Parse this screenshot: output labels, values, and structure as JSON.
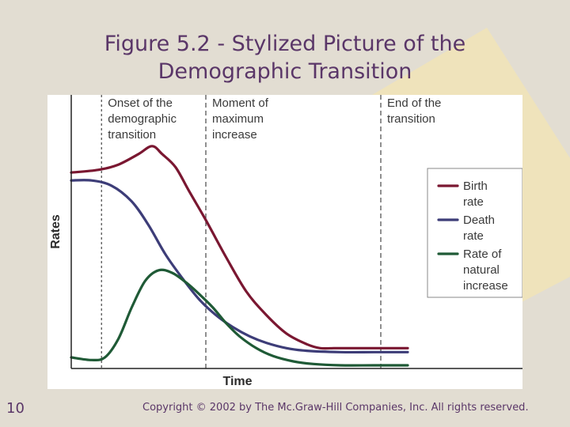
{
  "slide": {
    "title_line1": "Figure 5.2 - Stylized Picture of the",
    "title_line2": "Demographic Transition",
    "page_number": "10",
    "copyright": "Copyright © 2002 by The Mc.Graw-Hill Companies, Inc.  All rights reserved.",
    "colors": {
      "background": "#e2ddd2",
      "accent_wedge": "#efe3bb",
      "title_text": "#5a3668"
    }
  },
  "chart_data": {
    "type": "line",
    "title": "",
    "xlabel": "Time",
    "ylabel": "Rates",
    "xlim": [
      0,
      100
    ],
    "ylim": [
      0,
      100
    ],
    "grid": false,
    "legend_position": "right",
    "series": [
      {
        "name": "Birth rate",
        "name_lines": [
          "Birth",
          "rate"
        ],
        "color": "#7a1731",
        "x": [
          0,
          8,
          14,
          20,
          24,
          27,
          31,
          35,
          40,
          46,
          52,
          58,
          64,
          70,
          74,
          78,
          80,
          90,
          100
        ],
        "y": [
          73,
          74,
          76,
          80,
          83,
          80,
          75,
          66,
          55,
          41,
          28,
          19,
          12,
          8,
          6.5,
          6.5,
          6.5,
          6.5,
          6.5
        ]
      },
      {
        "name": "Death rate",
        "name_lines": [
          "Death",
          "rate"
        ],
        "color": "#3d3d78",
        "x": [
          0,
          6,
          12,
          18,
          23,
          28,
          33,
          38,
          43,
          48,
          53,
          58,
          64,
          70,
          80,
          90,
          100
        ],
        "y": [
          70,
          70,
          68,
          62,
          53,
          42,
          33,
          25,
          19,
          14.5,
          11,
          8.5,
          6.5,
          5.5,
          5,
          5,
          5
        ]
      },
      {
        "name": "Rate of natural increase",
        "name_lines": [
          "Rate of",
          "natural",
          "increase"
        ],
        "color": "#1f5a36",
        "x": [
          0,
          6,
          10,
          14,
          18,
          22,
          26,
          30,
          34,
          38,
          42,
          46,
          50,
          55,
          60,
          66,
          72,
          80,
          90,
          100
        ],
        "y": [
          3,
          2,
          3,
          10,
          22,
          32,
          36,
          35,
          31.5,
          27,
          22,
          16,
          11,
          6.5,
          3.5,
          1.5,
          0.5,
          0,
          0,
          0
        ]
      }
    ],
    "markers": [
      {
        "x": 9,
        "lines": [
          "Onset of the",
          "demographic",
          "transition"
        ]
      },
      {
        "x": 40,
        "lines": [
          "Moment of",
          "maximum",
          "increase"
        ]
      },
      {
        "x": 92,
        "lines": [
          "End of the",
          "transition"
        ]
      }
    ]
  }
}
